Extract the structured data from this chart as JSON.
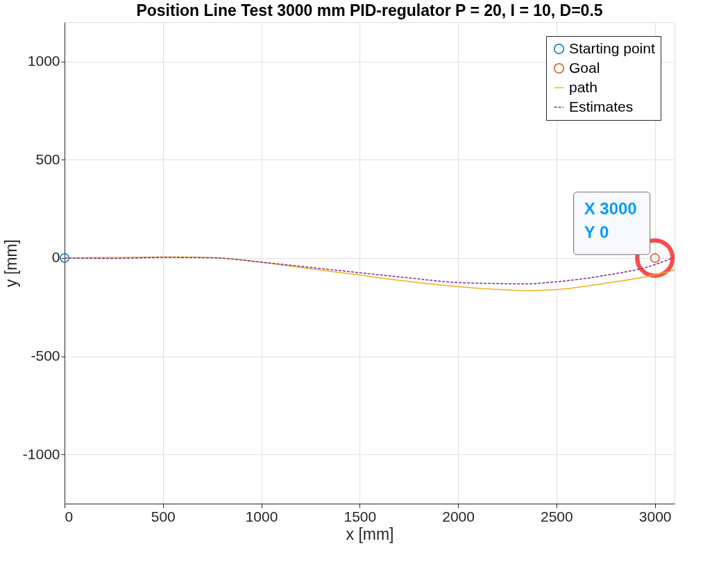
{
  "chart_data": {
    "type": "line",
    "title": "Position Line Test 3000 mm PID-regulator P = 20, I = 10, D=0.5",
    "xlabel": "x [mm]",
    "ylabel": "y [mm]",
    "xlim": [
      0,
      3100
    ],
    "ylim": [
      -1250,
      1200
    ],
    "xticks": [
      0,
      500,
      1000,
      1500,
      2000,
      2500,
      3000
    ],
    "yticks": [
      -1000,
      -500,
      0,
      500,
      1000
    ],
    "grid": true,
    "legend": "top right",
    "series": [
      {
        "name": "Starting point",
        "type": "scatter",
        "marker": "circle",
        "color": "#0072bd",
        "x": [
          0
        ],
        "values": [
          0
        ]
      },
      {
        "name": "Goal",
        "type": "scatter",
        "marker": "circle",
        "color": "#d95319",
        "x": [
          3000
        ],
        "values": [
          0
        ]
      },
      {
        "name": "path",
        "line_style": "solid",
        "color": "#edb120",
        "x": [
          0,
          250,
          500,
          750,
          1000,
          1250,
          1500,
          1730,
          2000,
          2200,
          2340,
          2500,
          2750,
          3000,
          3100
        ],
        "values": [
          0,
          3,
          5,
          2,
          -22,
          -55,
          -87,
          -117,
          -146,
          -160,
          -166,
          -161,
          -128,
          -86,
          -60
        ]
      },
      {
        "name": "Estimates",
        "line_style": "dashed",
        "color": "#7e2f8e",
        "x": [
          0,
          250,
          500,
          750,
          1000,
          1250,
          1500,
          1730,
          2000,
          2200,
          2340,
          2500,
          2750,
          3000,
          3094
        ],
        "values": [
          0,
          -2,
          3,
          1,
          -21,
          -48,
          -75,
          -99,
          -125,
          -130,
          -132,
          -121,
          -88,
          -34,
          2
        ]
      }
    ],
    "annotations": [
      {
        "text": "X 3000\nY 0",
        "x": 3000,
        "y": 0
      }
    ]
  }
}
